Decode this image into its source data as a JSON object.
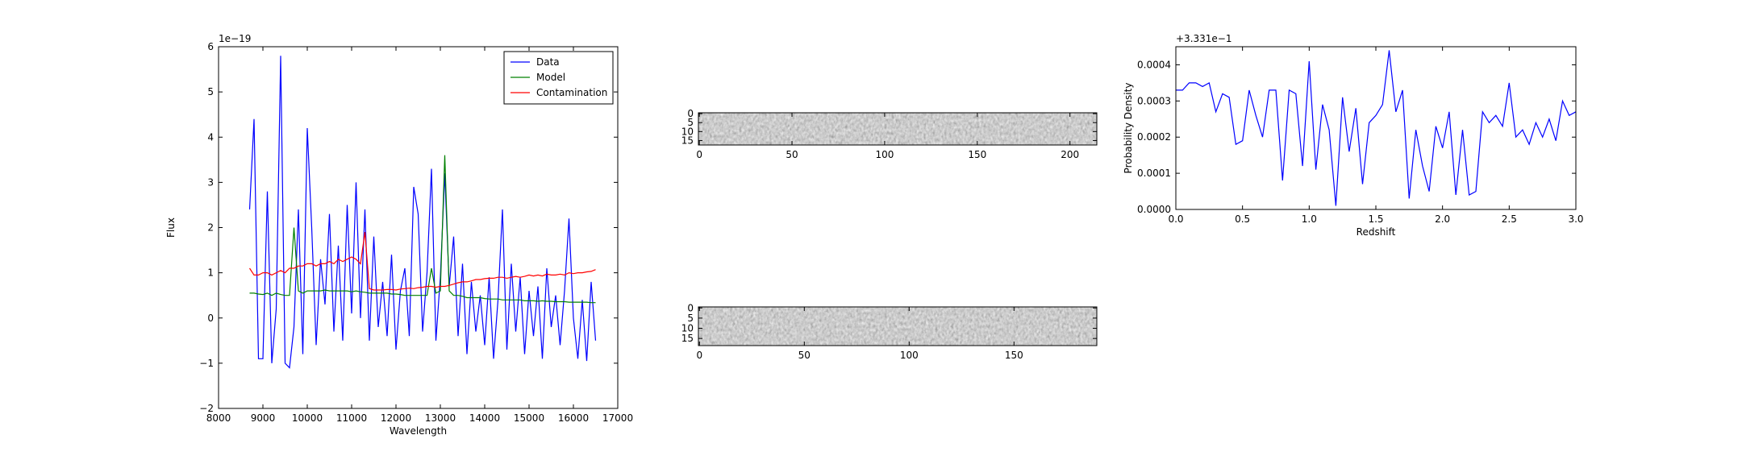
{
  "chart_data": [
    {
      "type": "line",
      "xlabel": "Wavelength",
      "ylabel": "Flux",
      "offset_text": "1e−19",
      "xlim": [
        8000,
        17000
      ],
      "xticks": [
        8000,
        9000,
        10000,
        11000,
        12000,
        13000,
        14000,
        15000,
        16000,
        17000
      ],
      "ylim": [
        -2,
        6
      ],
      "yticks": [
        {
          "value": -2,
          "label": "−2"
        },
        {
          "value": -1,
          "label": "−1"
        },
        0,
        1,
        2,
        3,
        4,
        5,
        6
      ],
      "legend": "upper right",
      "x": [
        8700,
        8800,
        8900,
        9000,
        9100,
        9200,
        9300,
        9400,
        9500,
        9600,
        9700,
        9800,
        9900,
        10000,
        10100,
        10200,
        10300,
        10400,
        10500,
        10600,
        10700,
        10800,
        10900,
        11000,
        11100,
        11200,
        11300,
        11400,
        11500,
        11600,
        11700,
        11800,
        11900,
        12000,
        12100,
        12200,
        12300,
        12400,
        12500,
        12600,
        12700,
        12800,
        12900,
        13000,
        13100,
        13200,
        13300,
        13400,
        13500,
        13600,
        13700,
        13800,
        13900,
        14000,
        14100,
        14200,
        14300,
        14400,
        14500,
        14600,
        14700,
        14800,
        14900,
        15000,
        15100,
        15200,
        15300,
        15400,
        15500,
        15600,
        15700,
        15800,
        15900,
        16000,
        16100,
        16200,
        16300,
        16400,
        16500
      ],
      "series": [
        {
          "name": "Data",
          "color": "#0000ff",
          "values": [
            2.4,
            4.4,
            -0.9,
            -0.9,
            2.8,
            -1.0,
            0.2,
            5.8,
            -1.0,
            -1.1,
            -0.2,
            2.4,
            -0.8,
            4.2,
            2.0,
            -0.6,
            1.3,
            0.3,
            2.3,
            -0.3,
            1.6,
            -0.5,
            2.5,
            0.1,
            3.0,
            0.0,
            2.4,
            -0.5,
            1.8,
            -0.2,
            0.8,
            -0.4,
            1.4,
            -0.7,
            0.6,
            1.1,
            -0.4,
            2.9,
            2.3,
            -0.3,
            1.0,
            3.3,
            -0.5,
            0.9,
            3.2,
            0.7,
            1.8,
            -0.4,
            1.2,
            -0.8,
            0.8,
            -0.3,
            0.5,
            -0.6,
            0.9,
            -0.9,
            0.4,
            2.4,
            -0.7,
            1.2,
            -0.3,
            0.9,
            -0.8,
            0.6,
            -0.4,
            0.7,
            -0.9,
            1.1,
            -0.2,
            0.5,
            -0.6,
            0.6,
            2.2,
            0.0,
            -0.9,
            0.4,
            -0.95,
            0.8,
            -0.5
          ]
        },
        {
          "name": "Model",
          "color": "#008000",
          "values": [
            0.55,
            0.55,
            0.53,
            0.52,
            0.55,
            0.5,
            0.55,
            0.52,
            0.5,
            0.5,
            2.0,
            0.6,
            0.55,
            0.6,
            0.6,
            0.6,
            0.6,
            0.62,
            0.6,
            0.6,
            0.6,
            0.6,
            0.6,
            0.58,
            0.6,
            0.58,
            0.57,
            0.55,
            0.55,
            0.55,
            0.55,
            0.55,
            0.53,
            0.53,
            0.52,
            0.5,
            0.5,
            0.5,
            0.5,
            0.5,
            0.5,
            1.1,
            0.55,
            0.6,
            3.6,
            0.6,
            0.5,
            0.5,
            0.48,
            0.45,
            0.45,
            0.45,
            0.45,
            0.43,
            0.42,
            0.42,
            0.42,
            0.4,
            0.4,
            0.4,
            0.4,
            0.4,
            0.38,
            0.38,
            0.38,
            0.37,
            0.38,
            0.37,
            0.37,
            0.36,
            0.36,
            0.36,
            0.35,
            0.35,
            0.35,
            0.35,
            0.35,
            0.34,
            0.34
          ]
        },
        {
          "name": "Contamination",
          "color": "#ff0000",
          "values": [
            1.1,
            0.95,
            0.95,
            1.0,
            1.0,
            0.95,
            1.0,
            1.05,
            1.0,
            1.1,
            1.1,
            1.15,
            1.15,
            1.2,
            1.2,
            1.15,
            1.2,
            1.2,
            1.25,
            1.2,
            1.3,
            1.25,
            1.3,
            1.35,
            1.3,
            1.2,
            1.9,
            0.65,
            0.62,
            0.62,
            0.62,
            0.63,
            0.63,
            0.62,
            0.64,
            0.65,
            0.66,
            0.65,
            0.67,
            0.68,
            0.7,
            0.7,
            0.68,
            0.7,
            0.7,
            0.72,
            0.75,
            0.78,
            0.8,
            0.8,
            0.82,
            0.85,
            0.85,
            0.87,
            0.88,
            0.88,
            0.9,
            0.9,
            0.88,
            0.9,
            0.92,
            0.9,
            0.92,
            0.95,
            0.93,
            0.95,
            0.93,
            0.97,
            0.95,
            0.95,
            0.97,
            0.95,
            1.0,
            0.98,
            1.0,
            1.0,
            1.02,
            1.03,
            1.07
          ]
        }
      ]
    },
    {
      "type": "image",
      "xlim": [
        -0.5,
        214.5
      ],
      "xticks": [
        0,
        50,
        100,
        150,
        200
      ],
      "ylim": [
        17.5,
        -0.5
      ],
      "yticks": [
        0,
        5,
        10,
        15
      ]
    },
    {
      "type": "image",
      "xlim": [
        -0.5,
        189.5
      ],
      "xticks": [
        0,
        50,
        100,
        150
      ],
      "ylim": [
        18.5,
        -0.5
      ],
      "yticks": [
        0,
        5,
        10,
        15
      ]
    },
    {
      "type": "line",
      "xlabel": "Redshift",
      "ylabel": "Probability Density",
      "offset_text": "+3.331e−1",
      "xlim": [
        0,
        3
      ],
      "xticks": [
        {
          "value": 0,
          "label": "0.0"
        },
        0.5,
        {
          "value": 1,
          "label": "1.0"
        },
        1.5,
        {
          "value": 2,
          "label": "2.0"
        },
        2.5,
        {
          "value": 3,
          "label": "3.0"
        }
      ],
      "ylim": [
        0,
        0.00045
      ],
      "yticks": [
        {
          "value": 0,
          "label": "0.0000"
        },
        {
          "value": 0.0001,
          "label": "0.0001"
        },
        {
          "value": 0.0002,
          "label": "0.0002"
        },
        {
          "value": 0.0003,
          "label": "0.0003"
        },
        {
          "value": 0.0004,
          "label": "0.0004"
        }
      ],
      "x": [
        0,
        0.05,
        0.1,
        0.15,
        0.2,
        0.25,
        0.3,
        0.35,
        0.4,
        0.45,
        0.5,
        0.55,
        0.6,
        0.65,
        0.7,
        0.75,
        0.8,
        0.85,
        0.9,
        0.95,
        1.0,
        1.05,
        1.1,
        1.15,
        1.2,
        1.25,
        1.3,
        1.35,
        1.4,
        1.45,
        1.5,
        1.55,
        1.6,
        1.65,
        1.7,
        1.75,
        1.8,
        1.85,
        1.9,
        1.95,
        2.0,
        2.05,
        2.1,
        2.15,
        2.2,
        2.25,
        2.3,
        2.35,
        2.4,
        2.45,
        2.5,
        2.55,
        2.6,
        2.65,
        2.7,
        2.75,
        2.8,
        2.85,
        2.9,
        2.95,
        3.0
      ],
      "series": [
        {
          "color": "#0000ff",
          "values": [
            0.00033,
            0.00033,
            0.00035,
            0.00035,
            0.00034,
            0.00035,
            0.00027,
            0.00032,
            0.00031,
            0.00018,
            0.00019,
            0.00033,
            0.00026,
            0.0002,
            0.00033,
            0.00033,
            8e-05,
            0.00033,
            0.00032,
            0.00012,
            0.00041,
            0.00011,
            0.00029,
            0.00022,
            1e-05,
            0.00031,
            0.00016,
            0.00028,
            7e-05,
            0.00024,
            0.00026,
            0.00029,
            0.00044,
            0.00027,
            0.00033,
            3e-05,
            0.00022,
            0.00012,
            5e-05,
            0.00023,
            0.00017,
            0.00027,
            4e-05,
            0.00022,
            4e-05,
            5e-05,
            0.00027,
            0.00024,
            0.00026,
            0.00023,
            0.00035,
            0.0002,
            0.00022,
            0.00018,
            0.00024,
            0.0002,
            0.00025,
            0.00019,
            0.0003,
            0.00026,
            0.00027
          ]
        }
      ]
    }
  ]
}
